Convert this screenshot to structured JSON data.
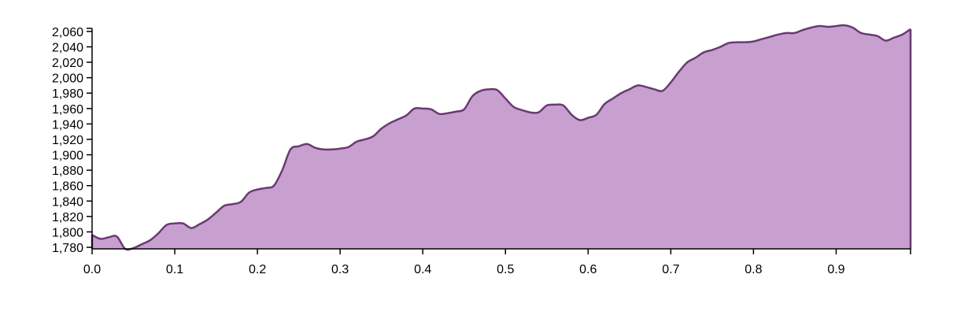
{
  "chart_data": {
    "type": "area",
    "title": "",
    "xlabel": "",
    "ylabel": "",
    "xlim": [
      0,
      0.99
    ],
    "ylim": [
      1778,
      2064
    ],
    "x_ticks": [
      "0.0",
      "0.1",
      "0.2",
      "0.3",
      "0.4",
      "0.5",
      "0.6",
      "0.7",
      "0.8",
      "0.9"
    ],
    "y_ticks": [
      "1,780",
      "1,800",
      "1,820",
      "1,840",
      "1,860",
      "1,880",
      "1,900",
      "1,920",
      "1,940",
      "1,960",
      "1,980",
      "2,000",
      "2,020",
      "2,040",
      "2,060"
    ],
    "fill_color": "#c8a0d0",
    "line_color": "#6a3a72",
    "series": [
      {
        "x": [
          0.0,
          0.01,
          0.02,
          0.03,
          0.04,
          0.05,
          0.06,
          0.07,
          0.08,
          0.09,
          0.1,
          0.11,
          0.12,
          0.13,
          0.14,
          0.15,
          0.16,
          0.17,
          0.18,
          0.19,
          0.2,
          0.21,
          0.22,
          0.23,
          0.24,
          0.25,
          0.26,
          0.27,
          0.28,
          0.29,
          0.3,
          0.31,
          0.32,
          0.33,
          0.34,
          0.35,
          0.36,
          0.37,
          0.38,
          0.39,
          0.4,
          0.41,
          0.42,
          0.43,
          0.44,
          0.45,
          0.46,
          0.47,
          0.48,
          0.49,
          0.5,
          0.51,
          0.52,
          0.53,
          0.54,
          0.55,
          0.56,
          0.57,
          0.58,
          0.59,
          0.6,
          0.61,
          0.62,
          0.63,
          0.64,
          0.65,
          0.66,
          0.67,
          0.68,
          0.69,
          0.7,
          0.71,
          0.72,
          0.73,
          0.74,
          0.75,
          0.76,
          0.77,
          0.78,
          0.79,
          0.8,
          0.81,
          0.82,
          0.83,
          0.84,
          0.85,
          0.86,
          0.87,
          0.88,
          0.89,
          0.9,
          0.91,
          0.92,
          0.93,
          0.94,
          0.95,
          0.96,
          0.97,
          0.98,
          0.99
        ],
        "y": [
          1796,
          1791,
          1793,
          1794,
          1778,
          1779,
          1784,
          1789,
          1798,
          1809,
          1811,
          1811,
          1805,
          1810,
          1816,
          1825,
          1834,
          1836,
          1839,
          1851,
          1855,
          1857,
          1860,
          1880,
          1907,
          1911,
          1914,
          1909,
          1907,
          1907,
          1908,
          1910,
          1917,
          1920,
          1924,
          1934,
          1941,
          1946,
          1951,
          1960,
          1960,
          1959,
          1953,
          1954,
          1956,
          1959,
          1976,
          1983,
          1985,
          1984,
          1973,
          1962,
          1958,
          1955,
          1955,
          1964,
          1965,
          1964,
          1952,
          1945,
          1948,
          1952,
          1966,
          1973,
          1980,
          1985,
          1990,
          1988,
          1985,
          1983,
          1994,
          2008,
          2020,
          2026,
          2033,
          2036,
          2040,
          2045,
          2046,
          2046,
          2047,
          2050,
          2053,
          2056,
          2058,
          2058,
          2062,
          2065,
          2067,
          2066,
          2067,
          2068,
          2065,
          2058,
          2056,
          2054,
          2048,
          2052,
          2056,
          2063
        ]
      }
    ]
  }
}
